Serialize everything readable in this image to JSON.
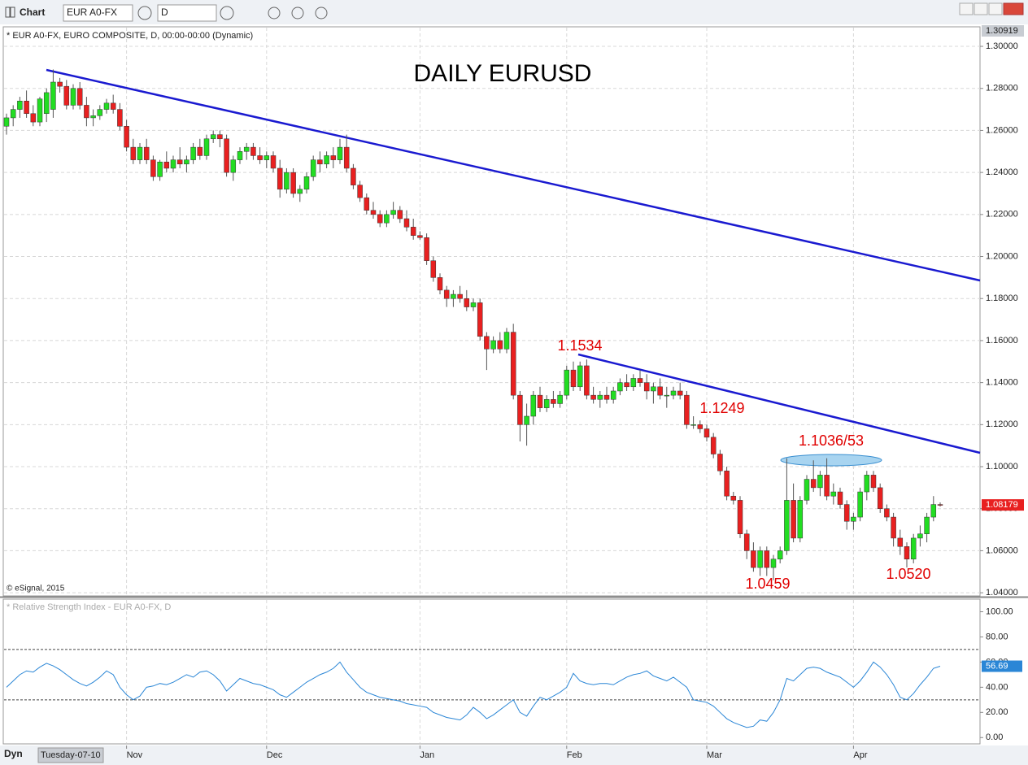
{
  "toolbar": {
    "title": "Chart",
    "symbol": "EUR A0-FX",
    "interval": "D"
  },
  "status": {
    "mode": "Dyn",
    "date": "Tuesday-07-10"
  },
  "chart_data": [
    {
      "type": "candlestick",
      "title": "DAILY EURUSD",
      "legend": "* EUR A0-FX, EURO COMPOSITE, D, 00:00-00:00 (Dynamic)",
      "credit": "© eSignal, 2015",
      "up_color": "#22dd22",
      "down_color": "#e82020",
      "ylim": [
        1.0385,
        1.3093
      ],
      "yticks": [
        {
          "value": 1.04,
          "label": "1.04000"
        },
        {
          "value": 1.06,
          "label": "1.06000"
        },
        {
          "value": 1.08,
          "label": "1.08000"
        },
        {
          "value": 1.1,
          "label": "1.10000"
        },
        {
          "value": 1.12,
          "label": "1.12000"
        },
        {
          "value": 1.14,
          "label": "1.14000"
        },
        {
          "value": 1.16,
          "label": "1.16000"
        },
        {
          "value": 1.18,
          "label": "1.18000"
        },
        {
          "value": 1.2,
          "label": "1.20000"
        },
        {
          "value": 1.22,
          "label": "1.22000"
        },
        {
          "value": 1.24,
          "label": "1.24000"
        },
        {
          "value": 1.26,
          "label": "1.26000"
        },
        {
          "value": 1.28,
          "label": "1.28000"
        },
        {
          "value": 1.3,
          "label": "1.30000"
        }
      ],
      "high_label": 1.30919,
      "last_price": 1.08179,
      "annotations": [
        "1.1534",
        "1.1249",
        "1.1036/53",
        "1.0459",
        "1.0520"
      ],
      "ohlc": [
        [
          1.262,
          1.268,
          1.258,
          1.266
        ],
        [
          1.266,
          1.272,
          1.262,
          1.27
        ],
        [
          1.27,
          1.276,
          1.266,
          1.274
        ],
        [
          1.274,
          1.279,
          1.266,
          1.268
        ],
        [
          1.268,
          1.272,
          1.262,
          1.264
        ],
        [
          1.264,
          1.276,
          1.262,
          1.275
        ],
        [
          1.268,
          1.28,
          1.264,
          1.278
        ],
        [
          1.27,
          1.289,
          1.266,
          1.283
        ],
        [
          1.283,
          1.285,
          1.278,
          1.281
        ],
        [
          1.281,
          1.284,
          1.27,
          1.272
        ],
        [
          1.272,
          1.282,
          1.27,
          1.28
        ],
        [
          1.28,
          1.283,
          1.27,
          1.272
        ],
        [
          1.272,
          1.276,
          1.262,
          1.266
        ],
        [
          1.266,
          1.27,
          1.262,
          1.267
        ],
        [
          1.267,
          1.272,
          1.265,
          1.27
        ],
        [
          1.27,
          1.275,
          1.268,
          1.273
        ],
        [
          1.273,
          1.277,
          1.268,
          1.27
        ],
        [
          1.27,
          1.273,
          1.26,
          1.262
        ],
        [
          1.262,
          1.265,
          1.25,
          1.252
        ],
        [
          1.252,
          1.256,
          1.244,
          1.246
        ],
        [
          1.246,
          1.254,
          1.244,
          1.252
        ],
        [
          1.252,
          1.256,
          1.244,
          1.246
        ],
        [
          1.246,
          1.248,
          1.236,
          1.238
        ],
        [
          1.238,
          1.246,
          1.236,
          1.245
        ],
        [
          1.245,
          1.25,
          1.24,
          1.242
        ],
        [
          1.242,
          1.248,
          1.24,
          1.246
        ],
        [
          1.246,
          1.252,
          1.242,
          1.244
        ],
        [
          1.244,
          1.248,
          1.24,
          1.246
        ],
        [
          1.246,
          1.254,
          1.244,
          1.252
        ],
        [
          1.252,
          1.256,
          1.246,
          1.248
        ],
        [
          1.248,
          1.258,
          1.246,
          1.256
        ],
        [
          1.256,
          1.26,
          1.254,
          1.258
        ],
        [
          1.258,
          1.26,
          1.252,
          1.256
        ],
        [
          1.256,
          1.258,
          1.238,
          1.24
        ],
        [
          1.24,
          1.248,
          1.236,
          1.246
        ],
        [
          1.246,
          1.252,
          1.244,
          1.25
        ],
        [
          1.25,
          1.254,
          1.246,
          1.252
        ],
        [
          1.252,
          1.254,
          1.246,
          1.248
        ],
        [
          1.248,
          1.252,
          1.244,
          1.246
        ],
        [
          1.246,
          1.25,
          1.242,
          1.248
        ],
        [
          1.248,
          1.25,
          1.24,
          1.242
        ],
        [
          1.242,
          1.246,
          1.228,
          1.232
        ],
        [
          1.232,
          1.242,
          1.23,
          1.24
        ],
        [
          1.24,
          1.242,
          1.228,
          1.23
        ],
        [
          1.23,
          1.234,
          1.226,
          1.232
        ],
        [
          1.232,
          1.24,
          1.23,
          1.238
        ],
        [
          1.238,
          1.248,
          1.236,
          1.246
        ],
        [
          1.246,
          1.25,
          1.24,
          1.244
        ],
        [
          1.244,
          1.25,
          1.242,
          1.248
        ],
        [
          1.248,
          1.252,
          1.242,
          1.246
        ],
        [
          1.246,
          1.256,
          1.244,
          1.252
        ],
        [
          1.252,
          1.258,
          1.24,
          1.242
        ],
        [
          1.242,
          1.244,
          1.232,
          1.234
        ],
        [
          1.234,
          1.236,
          1.226,
          1.228
        ],
        [
          1.228,
          1.23,
          1.22,
          1.222
        ],
        [
          1.222,
          1.226,
          1.218,
          1.22
        ],
        [
          1.22,
          1.222,
          1.214,
          1.216
        ],
        [
          1.216,
          1.222,
          1.214,
          1.22
        ],
        [
          1.22,
          1.226,
          1.218,
          1.222
        ],
        [
          1.222,
          1.224,
          1.216,
          1.218
        ],
        [
          1.218,
          1.222,
          1.212,
          1.214
        ],
        [
          1.214,
          1.218,
          1.208,
          1.21
        ],
        [
          1.21,
          1.212,
          1.208,
          1.209
        ],
        [
          1.209,
          1.211,
          1.196,
          1.198
        ],
        [
          1.198,
          1.2,
          1.188,
          1.19
        ],
        [
          1.19,
          1.192,
          1.182,
          1.184
        ],
        [
          1.184,
          1.186,
          1.176,
          1.18
        ],
        [
          1.18,
          1.184,
          1.176,
          1.182
        ],
        [
          1.182,
          1.186,
          1.178,
          1.18
        ],
        [
          1.18,
          1.184,
          1.174,
          1.176
        ],
        [
          1.176,
          1.18,
          1.174,
          1.178
        ],
        [
          1.178,
          1.18,
          1.16,
          1.162
        ],
        [
          1.162,
          1.164,
          1.146,
          1.156
        ],
        [
          1.156,
          1.162,
          1.154,
          1.16
        ],
        [
          1.16,
          1.164,
          1.154,
          1.156
        ],
        [
          1.156,
          1.166,
          1.154,
          1.164
        ],
        [
          1.164,
          1.168,
          1.132,
          1.134
        ],
        [
          1.134,
          1.136,
          1.112,
          1.12
        ],
        [
          1.12,
          1.13,
          1.11,
          1.124
        ],
        [
          1.124,
          1.136,
          1.12,
          1.134
        ],
        [
          1.134,
          1.138,
          1.126,
          1.128
        ],
        [
          1.128,
          1.134,
          1.126,
          1.132
        ],
        [
          1.132,
          1.136,
          1.128,
          1.13
        ],
        [
          1.13,
          1.136,
          1.128,
          1.134
        ],
        [
          1.134,
          1.148,
          1.132,
          1.146
        ],
        [
          1.146,
          1.15,
          1.136,
          1.138
        ],
        [
          1.138,
          1.15,
          1.136,
          1.148
        ],
        [
          1.148,
          1.151,
          1.132,
          1.134
        ],
        [
          1.134,
          1.138,
          1.13,
          1.132
        ],
        [
          1.132,
          1.136,
          1.128,
          1.134
        ],
        [
          1.134,
          1.138,
          1.13,
          1.132
        ],
        [
          1.132,
          1.138,
          1.13,
          1.136
        ],
        [
          1.136,
          1.142,
          1.134,
          1.14
        ],
        [
          1.14,
          1.144,
          1.136,
          1.138
        ],
        [
          1.138,
          1.144,
          1.136,
          1.142
        ],
        [
          1.142,
          1.146,
          1.138,
          1.14
        ],
        [
          1.14,
          1.144,
          1.132,
          1.136
        ],
        [
          1.136,
          1.14,
          1.13,
          1.138
        ],
        [
          1.138,
          1.142,
          1.132,
          1.134
        ],
        [
          1.134,
          1.138,
          1.128,
          1.134
        ],
        [
          1.134,
          1.138,
          1.132,
          1.136
        ],
        [
          1.136,
          1.14,
          1.132,
          1.134
        ],
        [
          1.134,
          1.136,
          1.118,
          1.12
        ],
        [
          1.12,
          1.124,
          1.118,
          1.12
        ],
        [
          1.12,
          1.122,
          1.116,
          1.118
        ],
        [
          1.118,
          1.12,
          1.112,
          1.114
        ],
        [
          1.114,
          1.116,
          1.104,
          1.106
        ],
        [
          1.106,
          1.108,
          1.096,
          1.098
        ],
        [
          1.098,
          1.1,
          1.084,
          1.086
        ],
        [
          1.086,
          1.088,
          1.082,
          1.084
        ],
        [
          1.084,
          1.086,
          1.066,
          1.068
        ],
        [
          1.068,
          1.07,
          1.056,
          1.06
        ],
        [
          1.06,
          1.064,
          1.05,
          1.052
        ],
        [
          1.052,
          1.062,
          1.048,
          1.06
        ],
        [
          1.06,
          1.062,
          1.048,
          1.052
        ],
        [
          1.052,
          1.058,
          1.046,
          1.056
        ],
        [
          1.056,
          1.062,
          1.054,
          1.06
        ],
        [
          1.06,
          1.104,
          1.058,
          1.084
        ],
        [
          1.084,
          1.092,
          1.064,
          1.066
        ],
        [
          1.066,
          1.086,
          1.064,
          1.084
        ],
        [
          1.084,
          1.096,
          1.082,
          1.094
        ],
        [
          1.094,
          1.103,
          1.088,
          1.09
        ],
        [
          1.09,
          1.098,
          1.086,
          1.096
        ],
        [
          1.096,
          1.104,
          1.084,
          1.086
        ],
        [
          1.086,
          1.092,
          1.082,
          1.088
        ],
        [
          1.088,
          1.09,
          1.08,
          1.082
        ],
        [
          1.082,
          1.084,
          1.07,
          1.074
        ],
        [
          1.074,
          1.078,
          1.07,
          1.076
        ],
        [
          1.076,
          1.09,
          1.074,
          1.088
        ],
        [
          1.088,
          1.098,
          1.084,
          1.096
        ],
        [
          1.096,
          1.098,
          1.088,
          1.09
        ],
        [
          1.09,
          1.092,
          1.078,
          1.08
        ],
        [
          1.08,
          1.082,
          1.074,
          1.076
        ],
        [
          1.076,
          1.078,
          1.062,
          1.066
        ],
        [
          1.066,
          1.07,
          1.058,
          1.062
        ],
        [
          1.062,
          1.064,
          1.052,
          1.056
        ],
        [
          1.056,
          1.068,
          1.054,
          1.066
        ],
        [
          1.066,
          1.072,
          1.062,
          1.068
        ],
        [
          1.068,
          1.078,
          1.064,
          1.076
        ],
        [
          1.076,
          1.086,
          1.074,
          1.082
        ],
        [
          1.082,
          1.083,
          1.081,
          1.0818
        ]
      ]
    },
    {
      "type": "line",
      "title": "* Relative Strength Index - EUR A0-FX, D",
      "color": "#2a86d6",
      "ylim": [
        -5,
        110
      ],
      "yticks": [
        {
          "value": 0,
          "label": "0.00"
        },
        {
          "value": 20,
          "label": "20.00"
        },
        {
          "value": 40,
          "label": "40.00"
        },
        {
          "value": 60,
          "label": "60.00"
        },
        {
          "value": 80,
          "label": "80.00"
        },
        {
          "value": 100,
          "label": "100.00"
        }
      ],
      "levels": [
        70,
        30
      ],
      "xticks": [
        {
          "value": 18,
          "label": "Nov"
        },
        {
          "value": 39,
          "label": "Dec"
        },
        {
          "value": 62,
          "label": "Jan"
        },
        {
          "value": 84,
          "label": "Feb"
        },
        {
          "value": 105,
          "label": "Mar"
        },
        {
          "value": 127,
          "label": "Apr"
        }
      ],
      "values": [
        40,
        45,
        50,
        53,
        52,
        56,
        59,
        57,
        54,
        50,
        46,
        43,
        41,
        44,
        48,
        53,
        50,
        40,
        34,
        30,
        33,
        40,
        41,
        43,
        42,
        44,
        47,
        50,
        48,
        52,
        53,
        50,
        45,
        37,
        42,
        47,
        45,
        43,
        42,
        40,
        38,
        34,
        32,
        36,
        40,
        44,
        47,
        50,
        52,
        55,
        60,
        52,
        46,
        40,
        36,
        34,
        32,
        31,
        30,
        29,
        27,
        26,
        25,
        24,
        20,
        18,
        16,
        15,
        14,
        18,
        24,
        20,
        15,
        18,
        22,
        26,
        30,
        20,
        17,
        25,
        32,
        30,
        33,
        36,
        40,
        51,
        45,
        43,
        42,
        43,
        43,
        42,
        45,
        48,
        50,
        51,
        53,
        49,
        47,
        45,
        48,
        44,
        40,
        30,
        29,
        28,
        25,
        20,
        15,
        12,
        10,
        8,
        9,
        14,
        13,
        20,
        30,
        47,
        45,
        50,
        55,
        56,
        55,
        52,
        50,
        48,
        44,
        40,
        45,
        52,
        60,
        56,
        50,
        42,
        32,
        30,
        35,
        42,
        48,
        55,
        56.69
      ]
    }
  ]
}
